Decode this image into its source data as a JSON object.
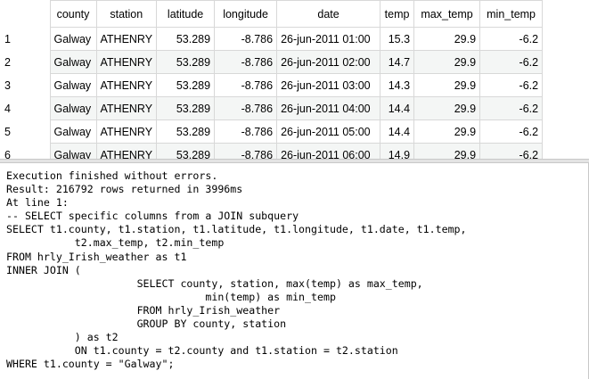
{
  "results": {
    "columns": [
      "county",
      "station",
      "latitude",
      "longitude",
      "date",
      "temp",
      "max_temp",
      "min_temp"
    ],
    "rows": [
      {
        "num": "1",
        "county": "Galway",
        "station": "ATHENRY",
        "latitude": "53.289",
        "longitude": "-8.786",
        "date": "26-jun-2011 01:00",
        "temp": "15.3",
        "max_temp": "29.9",
        "min_temp": "-6.2"
      },
      {
        "num": "2",
        "county": "Galway",
        "station": "ATHENRY",
        "latitude": "53.289",
        "longitude": "-8.786",
        "date": "26-jun-2011 02:00",
        "temp": "14.7",
        "max_temp": "29.9",
        "min_temp": "-6.2"
      },
      {
        "num": "3",
        "county": "Galway",
        "station": "ATHENRY",
        "latitude": "53.289",
        "longitude": "-8.786",
        "date": "26-jun-2011 03:00",
        "temp": "14.3",
        "max_temp": "29.9",
        "min_temp": "-6.2"
      },
      {
        "num": "4",
        "county": "Galway",
        "station": "ATHENRY",
        "latitude": "53.289",
        "longitude": "-8.786",
        "date": "26-jun-2011 04:00",
        "temp": "14.4",
        "max_temp": "29.9",
        "min_temp": "-6.2"
      },
      {
        "num": "5",
        "county": "Galway",
        "station": "ATHENRY",
        "latitude": "53.289",
        "longitude": "-8.786",
        "date": "26-jun-2011 05:00",
        "temp": "14.4",
        "max_temp": "29.9",
        "min_temp": "-6.2"
      },
      {
        "num": "6",
        "county": "Galway",
        "station": "ATHENRY",
        "latitude": "53.289",
        "longitude": "-8.786",
        "date": "26-jun-2011 06:00",
        "temp": "14.9",
        "max_temp": "29.9",
        "min_temp": "-6.2"
      }
    ]
  },
  "log": {
    "lines": [
      "Execution finished without errors.",
      "Result: 216792 rows returned in 3996ms",
      "At line 1:",
      "-- SELECT specific columns from a JOIN subquery",
      "SELECT t1.county, t1.station, t1.latitude, t1.longitude, t1.date, t1.temp,",
      "           t2.max_temp, t2.min_temp",
      "FROM hrly_Irish_weather as t1",
      "INNER JOIN (",
      "                     SELECT county, station, max(temp) as max_temp,",
      "                                min(temp) as min_temp",
      "                     FROM hrly_Irish_weather",
      "                     GROUP BY county, station",
      "           ) as t2",
      "           ON t1.county = t2.county and t1.station = t2.station",
      "WHERE t1.county = \"Galway\";"
    ]
  }
}
